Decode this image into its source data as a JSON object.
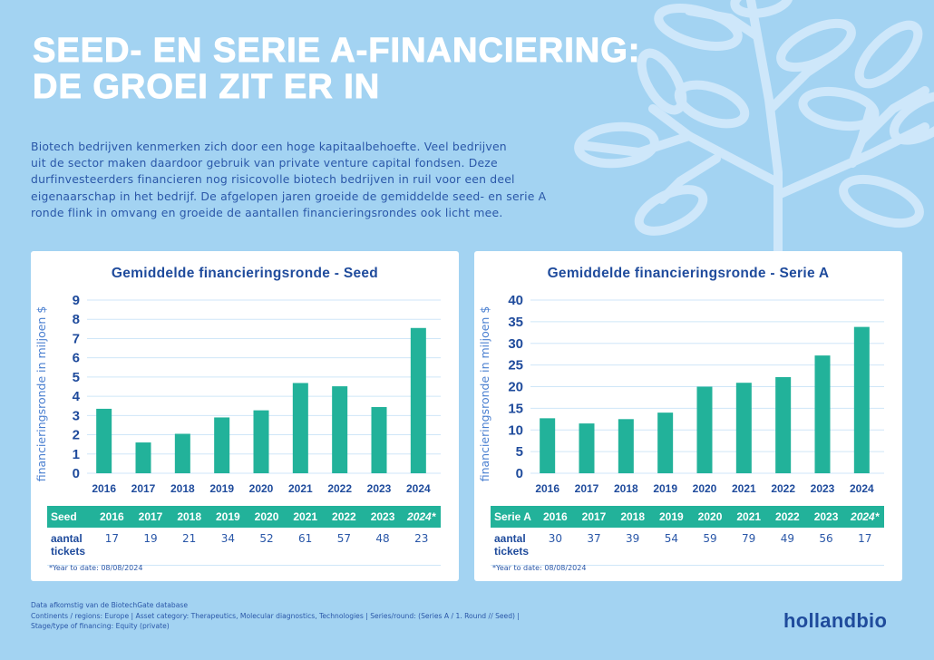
{
  "header": {
    "title_lines": [
      "SEED- EN SERIE A-FINANCIERING:",
      "DE GROEI ZIT ER IN"
    ],
    "intro_lines": [
      "Biotech bedrijven kenmerken zich door een hoge kapitaalbehoefte. Veel bedrijven",
      "uit de sector maken daardoor gebruik van private venture capital fondsen. Deze",
      "durfinvesteerders financieren nog risicovolle biotech bedrijven in ruil voor een deel",
      "eigenaarschap in het bedrijf. De afgelopen jaren groeide de gemiddelde seed- en serie A",
      "ronde flink in omvang en groeide de aantallen financieringsrondes ook licht mee."
    ]
  },
  "colors": {
    "background": "#a3d3f2",
    "bar": "#22b29a",
    "text_dark_blue": "#1f4b9c",
    "grid": "#cfe6f8"
  },
  "chart_data": [
    {
      "type": "bar",
      "title": "Gemiddelde financieringsronde - Seed",
      "xlabel": "",
      "ylabel": "financieringsronde in miljoen $",
      "categories": [
        "2016",
        "2017",
        "2018",
        "2019",
        "2020",
        "2021",
        "2022",
        "2023",
        "2024"
      ],
      "values": [
        3.35,
        1.6,
        2.05,
        2.9,
        3.27,
        4.69,
        4.52,
        3.44,
        7.55
      ],
      "ylim": [
        0,
        9
      ],
      "yticks": [
        "0",
        "1",
        "2",
        "3",
        "4",
        "5",
        "6",
        "7",
        "8",
        "9"
      ],
      "grid": true,
      "table": {
        "header_label": "Seed",
        "years": [
          "2016",
          "2017",
          "2018",
          "2019",
          "2020",
          "2021",
          "2022",
          "2023",
          "2024*"
        ],
        "row_label_lines": [
          "aantal",
          "tickets"
        ],
        "tickets": [
          "17",
          "19",
          "21",
          "34",
          "52",
          "61",
          "57",
          "48",
          "23"
        ]
      },
      "footnote": "*Year to date: 08/08/2024"
    },
    {
      "type": "bar",
      "title": "Gemiddelde financieringsronde - Serie A",
      "xlabel": "",
      "ylabel": "financieringsronde in miljoen $",
      "categories": [
        "2016",
        "2017",
        "2018",
        "2019",
        "2020",
        "2021",
        "2022",
        "2023",
        "2024"
      ],
      "values": [
        12.7,
        11.5,
        12.5,
        14.0,
        20.0,
        20.9,
        22.2,
        27.2,
        33.8
      ],
      "ylim": [
        0,
        40
      ],
      "yticks": [
        "0",
        "5",
        "10",
        "15",
        "20",
        "25",
        "30",
        "35",
        "40"
      ],
      "grid": true,
      "table": {
        "header_label": "Serie A",
        "years": [
          "2016",
          "2017",
          "2018",
          "2019",
          "2020",
          "2021",
          "2022",
          "2023",
          "2024*"
        ],
        "row_label_lines": [
          "aantal",
          "tickets"
        ],
        "tickets": [
          "30",
          "37",
          "39",
          "54",
          "59",
          "79",
          "49",
          "56",
          "17"
        ]
      },
      "footnote": "*Year to date: 08/08/2024"
    }
  ],
  "source": {
    "lines": [
      "Data afkomstig van de BiotechGate database",
      "Continents / regions: Europe | Asset category: Therapeutics, Molecular diagnostics, Technologies | Series/round: (Series A / 1. Round // Seed) |",
      "Stage/type of financing: Equity (private)"
    ]
  },
  "brand": {
    "logo_text": "hollandbio"
  }
}
